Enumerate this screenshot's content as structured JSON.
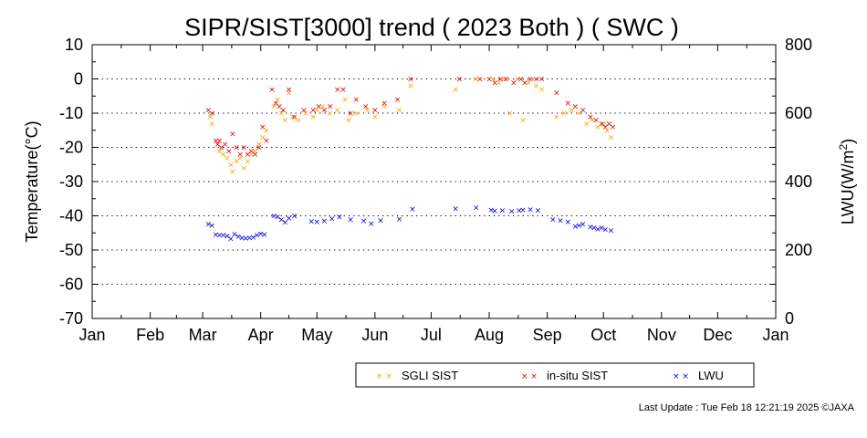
{
  "chart_data": {
    "type": "scatter",
    "title": "SIPR/SIST[3000] trend ( 2023 Both ) ( SWC )",
    "ylabel": "Temperature(°C)",
    "y2label_main": "LWU(W/m",
    "y2label_sup": "2",
    "y2label_close": ")",
    "ylim": [
      -70,
      10
    ],
    "y2lim": [
      0,
      800
    ],
    "yticks": [
      "10",
      "0",
      "-10",
      "-20",
      "-30",
      "-40",
      "-50",
      "-60",
      "-70"
    ],
    "y2ticks": [
      "800",
      "600",
      "400",
      "200",
      "0"
    ],
    "x_tick_labels": [
      "Jan",
      "Feb",
      "Mar",
      "Apr",
      "May",
      "Jun",
      "Jul",
      "Aug",
      "Sep",
      "Oct",
      "Nov",
      "Dec",
      "Jan"
    ],
    "grid": "horizontal dotted at every 10 °C",
    "legend_position": "bottom-right",
    "series": [
      {
        "name": "SGLI SIST",
        "color": "#ffa500",
        "axis": "left",
        "points": [
          [
            "2023-03-05",
            -11
          ],
          [
            "2023-03-06",
            -13
          ],
          [
            "2023-03-09",
            -19
          ],
          [
            "2023-03-10",
            -21
          ],
          [
            "2023-03-12",
            -22
          ],
          [
            "2023-03-14",
            -23
          ],
          [
            "2023-03-16",
            -25
          ],
          [
            "2023-03-17",
            -27
          ],
          [
            "2023-03-19",
            -24
          ],
          [
            "2023-03-21",
            -23
          ],
          [
            "2023-03-23",
            -26
          ],
          [
            "2023-03-25",
            -24
          ],
          [
            "2023-03-27",
            -22
          ],
          [
            "2023-03-29",
            -21
          ],
          [
            "2023-03-31",
            -19
          ],
          [
            "2023-04-02",
            -17
          ],
          [
            "2023-04-04",
            -15
          ],
          [
            "2023-04-08",
            -8
          ],
          [
            "2023-04-10",
            -6
          ],
          [
            "2023-04-12",
            -10
          ],
          [
            "2023-04-14",
            -12
          ],
          [
            "2023-04-16",
            -4
          ],
          [
            "2023-04-18",
            -11
          ],
          [
            "2023-04-21",
            -12
          ],
          [
            "2023-04-25",
            -10
          ],
          [
            "2023-04-29",
            -11
          ],
          [
            "2023-05-01",
            -9
          ],
          [
            "2023-05-04",
            -8
          ],
          [
            "2023-05-08",
            -10
          ],
          [
            "2023-05-12",
            -9
          ],
          [
            "2023-05-16",
            -6
          ],
          [
            "2023-05-18",
            -12
          ],
          [
            "2023-05-22",
            -10
          ],
          [
            "2023-05-28",
            -9
          ],
          [
            "2023-06-01",
            -11
          ],
          [
            "2023-06-06",
            -8
          ],
          [
            "2023-06-14",
            -9
          ],
          [
            "2023-06-20",
            -2
          ],
          [
            "2023-07-14",
            -3
          ],
          [
            "2023-07-25",
            0
          ],
          [
            "2023-08-03",
            0
          ],
          [
            "2023-08-06",
            -1
          ],
          [
            "2023-08-09",
            0
          ],
          [
            "2023-08-12",
            -10
          ],
          [
            "2023-08-16",
            0
          ],
          [
            "2023-08-19",
            -12
          ],
          [
            "2023-08-22",
            -1
          ],
          [
            "2023-08-26",
            -2
          ],
          [
            "2023-08-29",
            -3
          ],
          [
            "2023-09-06",
            -11
          ],
          [
            "2023-09-10",
            -10
          ],
          [
            "2023-09-14",
            -9
          ],
          [
            "2023-09-18",
            -10
          ],
          [
            "2023-09-22",
            -13
          ],
          [
            "2023-09-25",
            -12
          ],
          [
            "2023-09-28",
            -14
          ],
          [
            "2023-10-01",
            -13
          ],
          [
            "2023-10-03",
            -15
          ],
          [
            "2023-10-05",
            -17
          ]
        ]
      },
      {
        "name": "in-situ SIST",
        "color": "#e60000",
        "axis": "left",
        "points": [
          [
            "2023-03-04",
            -9
          ],
          [
            "2023-03-06",
            -10
          ],
          [
            "2023-03-08",
            -18
          ],
          [
            "2023-03-09",
            -19
          ],
          [
            "2023-03-10",
            -18
          ],
          [
            "2023-03-11",
            -20
          ],
          [
            "2023-03-13",
            -19
          ],
          [
            "2023-03-15",
            -21
          ],
          [
            "2023-03-17",
            -16
          ],
          [
            "2023-03-19",
            -20
          ],
          [
            "2023-03-21",
            -22
          ],
          [
            "2023-03-23",
            -20
          ],
          [
            "2023-03-25",
            -22
          ],
          [
            "2023-03-27",
            -21
          ],
          [
            "2023-03-29",
            -22
          ],
          [
            "2023-03-31",
            -20
          ],
          [
            "2023-04-02",
            -14
          ],
          [
            "2023-04-04",
            -18
          ],
          [
            "2023-04-07",
            -3
          ],
          [
            "2023-04-09",
            -7
          ],
          [
            "2023-04-11",
            -8
          ],
          [
            "2023-04-13",
            -9
          ],
          [
            "2023-04-16",
            -3
          ],
          [
            "2023-04-19",
            -11
          ],
          [
            "2023-04-24",
            -9
          ],
          [
            "2023-04-29",
            -9
          ],
          [
            "2023-05-02",
            -8
          ],
          [
            "2023-05-05",
            -9
          ],
          [
            "2023-05-08",
            -8
          ],
          [
            "2023-05-12",
            -3
          ],
          [
            "2023-05-15",
            -3
          ],
          [
            "2023-05-19",
            -10
          ],
          [
            "2023-05-22",
            -6
          ],
          [
            "2023-05-27",
            -8
          ],
          [
            "2023-06-01",
            -9
          ],
          [
            "2023-06-06",
            -7
          ],
          [
            "2023-06-13",
            -6
          ],
          [
            "2023-06-20",
            0
          ],
          [
            "2023-07-16",
            0
          ],
          [
            "2023-07-27",
            0
          ],
          [
            "2023-08-01",
            0
          ],
          [
            "2023-08-04",
            -1
          ],
          [
            "2023-08-07",
            0
          ],
          [
            "2023-08-10",
            0
          ],
          [
            "2023-08-14",
            -1
          ],
          [
            "2023-08-18",
            0
          ],
          [
            "2023-08-20",
            -1
          ],
          [
            "2023-08-23",
            0
          ],
          [
            "2023-08-26",
            0
          ],
          [
            "2023-08-29",
            0
          ],
          [
            "2023-09-06",
            -4
          ],
          [
            "2023-09-12",
            -7
          ],
          [
            "2023-09-16",
            -8
          ],
          [
            "2023-09-20",
            -9
          ],
          [
            "2023-09-24",
            -11
          ],
          [
            "2023-09-27",
            -12
          ],
          [
            "2023-09-30",
            -13
          ],
          [
            "2023-10-02",
            -14
          ],
          [
            "2023-10-04",
            -13
          ],
          [
            "2023-10-06",
            -14
          ]
        ]
      },
      {
        "name": "LWU",
        "color": "#0000dd",
        "axis": "right",
        "points": [
          [
            "2023-03-04",
            276
          ],
          [
            "2023-03-06",
            272
          ],
          [
            "2023-03-08",
            246
          ],
          [
            "2023-03-10",
            244
          ],
          [
            "2023-03-12",
            244
          ],
          [
            "2023-03-14",
            242
          ],
          [
            "2023-03-16",
            233
          ],
          [
            "2023-03-18",
            247
          ],
          [
            "2023-03-20",
            240
          ],
          [
            "2023-03-22",
            236
          ],
          [
            "2023-03-24",
            235
          ],
          [
            "2023-03-26",
            236
          ],
          [
            "2023-03-28",
            237
          ],
          [
            "2023-03-30",
            244
          ],
          [
            "2023-04-01",
            248
          ],
          [
            "2023-04-03",
            246
          ],
          [
            "2023-04-08",
            300
          ],
          [
            "2023-04-10",
            298
          ],
          [
            "2023-04-12",
            289
          ],
          [
            "2023-04-14",
            282
          ],
          [
            "2023-04-16",
            293
          ],
          [
            "2023-04-19",
            300
          ],
          [
            "2023-04-28",
            284
          ],
          [
            "2023-05-01",
            283
          ],
          [
            "2023-05-05",
            286
          ],
          [
            "2023-05-09",
            292
          ],
          [
            "2023-05-13",
            297
          ],
          [
            "2023-05-19",
            289
          ],
          [
            "2023-05-26",
            286
          ],
          [
            "2023-05-30",
            277
          ],
          [
            "2023-06-04",
            287
          ],
          [
            "2023-06-14",
            291
          ],
          [
            "2023-06-21",
            320
          ],
          [
            "2023-07-14",
            322
          ],
          [
            "2023-07-25",
            324
          ],
          [
            "2023-08-02",
            318
          ],
          [
            "2023-08-04",
            315
          ],
          [
            "2023-08-08",
            316
          ],
          [
            "2023-08-13",
            314
          ],
          [
            "2023-08-17",
            316
          ],
          [
            "2023-08-19",
            317
          ],
          [
            "2023-08-23",
            319
          ],
          [
            "2023-08-27",
            316
          ],
          [
            "2023-09-04",
            290
          ],
          [
            "2023-09-08",
            287
          ],
          [
            "2023-09-12",
            283
          ],
          [
            "2023-09-16",
            270
          ],
          [
            "2023-09-18",
            272
          ],
          [
            "2023-09-20",
            276
          ],
          [
            "2023-09-24",
            268
          ],
          [
            "2023-09-26",
            265
          ],
          [
            "2023-09-28",
            262
          ],
          [
            "2023-09-30",
            265
          ],
          [
            "2023-10-02",
            260
          ],
          [
            "2023-10-05",
            258
          ]
        ]
      }
    ]
  },
  "footer": {
    "last_update": "Last Update : Tue Feb 18 12:21:19 2025  ©JAXA"
  }
}
